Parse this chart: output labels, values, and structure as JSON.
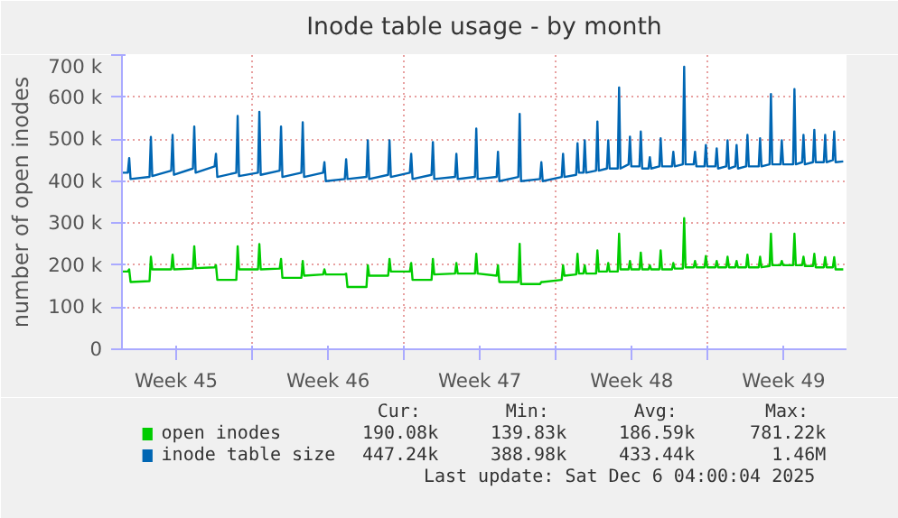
{
  "chart_data": {
    "type": "line",
    "title": "Inode table usage - by month",
    "ylabel": "number of open inodes",
    "x": [
      "2025-11-04T00:00",
      "2025-11-04T06:30",
      "2025-11-04T08:00",
      "2025-11-04T09:30",
      "2025-11-05T06:30",
      "2025-11-05T08:00",
      "2025-11-05T09:30",
      "2025-11-06T06:30",
      "2025-11-06T08:00",
      "2025-11-06T09:30",
      "2025-11-07T06:30",
      "2025-11-07T08:00",
      "2025-11-07T09:30",
      "2025-11-08T06:30",
      "2025-11-08T08:00",
      "2025-11-08T09:30",
      "2025-11-09T06:30",
      "2025-11-09T08:00",
      "2025-11-09T09:30",
      "2025-11-10T06:30",
      "2025-11-10T08:00",
      "2025-11-10T09:30",
      "2025-11-11T06:30",
      "2025-11-11T08:00",
      "2025-11-11T09:30",
      "2025-11-12T06:30",
      "2025-11-12T08:00",
      "2025-11-12T09:30",
      "2025-11-13T06:30",
      "2025-11-13T08:00",
      "2025-11-13T09:30",
      "2025-11-14T06:30",
      "2025-11-14T08:00",
      "2025-11-14T09:30",
      "2025-11-15T06:30",
      "2025-11-15T08:00",
      "2025-11-15T09:30",
      "2025-11-16T06:30",
      "2025-11-16T08:00",
      "2025-11-16T09:30",
      "2025-11-17T06:30",
      "2025-11-17T08:00",
      "2025-11-17T09:30",
      "2025-11-18T06:30",
      "2025-11-18T08:00",
      "2025-11-18T09:30",
      "2025-11-19T08:30",
      "2025-11-19T10:00",
      "2025-11-19T11:30",
      "2025-11-20T06:30",
      "2025-11-20T08:00",
      "2025-11-20T09:30",
      "2025-11-21T06:30",
      "2025-11-21T08:00",
      "2025-11-21T09:30",
      "2025-11-22T06:30",
      "2025-11-22T08:00",
      "2025-11-22T09:30",
      "2025-11-23T06:30",
      "2025-11-23T08:00",
      "2025-11-23T09:30",
      "2025-11-24T06:30",
      "2025-11-24T08:00",
      "2025-11-24T09:30",
      "2025-11-24T22:30",
      "2025-11-25T00:00",
      "2025-11-25T01:30",
      "2025-11-25T06:30",
      "2025-11-25T08:00",
      "2025-11-25T09:30",
      "2025-11-25T20:30",
      "2025-11-25T22:00",
      "2025-11-25T23:30",
      "2025-11-26T08:30",
      "2025-11-26T10:00",
      "2025-11-26T11:30",
      "2025-11-26T20:30",
      "2025-11-26T22:00",
      "2025-11-26T23:30",
      "2025-11-27T08:30",
      "2025-11-27T10:00",
      "2025-11-27T11:30",
      "2025-11-27T20:30",
      "2025-11-27T22:00",
      "2025-11-27T23:30",
      "2025-11-28T06:30",
      "2025-11-28T08:00",
      "2025-11-28T09:30",
      "2025-11-28T18:30",
      "2025-11-28T20:00",
      "2025-11-28T21:30",
      "2025-11-29T08:30",
      "2025-11-29T10:00",
      "2025-11-29T11:30",
      "2025-11-29T20:30",
      "2025-11-29T22:00",
      "2025-11-29T23:30",
      "2025-11-30T08:30",
      "2025-11-30T10:00",
      "2025-11-30T11:30",
      "2025-11-30T20:30",
      "2025-11-30T22:00",
      "2025-11-30T23:30",
      "2025-12-01T08:30",
      "2025-12-01T10:00",
      "2025-12-01T11:30",
      "2025-12-01T20:30",
      "2025-12-01T22:00",
      "2025-12-01T23:30",
      "2025-12-02T06:30",
      "2025-12-02T08:00",
      "2025-12-02T09:30",
      "2025-12-02T18:30",
      "2025-12-02T20:00",
      "2025-12-02T21:30",
      "2025-12-03T08:30",
      "2025-12-03T10:00",
      "2025-12-03T11:30",
      "2025-12-03T20:30",
      "2025-12-03T22:00",
      "2025-12-03T23:30",
      "2025-12-04T08:30",
      "2025-12-04T10:00",
      "2025-12-04T11:30",
      "2025-12-04T22:30",
      "2025-12-05T00:00",
      "2025-12-05T01:30",
      "2025-12-05T08:30",
      "2025-12-05T10:00",
      "2025-12-05T11:30",
      "2025-12-05T20:30",
      "2025-12-05T22:00",
      "2025-12-05T23:30",
      "2025-12-06T08:30",
      "2025-12-06T10:00",
      "2025-12-06T11:30",
      "2025-12-06T18:30",
      "2025-12-06T20:00",
      "2025-12-06T21:30",
      "2025-12-07T06:00"
    ],
    "series": [
      {
        "name": "open inodes",
        "color": "#00cc00",
        "values": [
          185000,
          185000,
          190000,
          160000,
          162000,
          220000,
          190000,
          190000,
          225000,
          190000,
          192000,
          245000,
          193000,
          195000,
          200000,
          165000,
          165000,
          245000,
          190000,
          190000,
          250000,
          190000,
          192000,
          215000,
          170000,
          170000,
          210000,
          175000,
          178000,
          190000,
          178000,
          178000,
          180000,
          148000,
          148000,
          200000,
          175000,
          175000,
          215000,
          185000,
          185000,
          205000,
          165000,
          165000,
          215000,
          178000,
          180000,
          205000,
          180000,
          180000,
          227000,
          180000,
          175000,
          200000,
          160000,
          160000,
          251000,
          155000,
          155000,
          160000,
          160000,
          165000,
          200000,
          175000,
          178000,
          227000,
          180000,
          180000,
          200000,
          180000,
          180000,
          235000,
          185000,
          185000,
          205000,
          185000,
          185000,
          275000,
          190000,
          190000,
          210000,
          190000,
          190000,
          230000,
          190000,
          190000,
          200000,
          190000,
          190000,
          235000,
          190000,
          190000,
          205000,
          192000,
          192000,
          312000,
          195000,
          195000,
          210000,
          195000,
          195000,
          222000,
          195000,
          195000,
          210000,
          195000,
          195000,
          220000,
          195000,
          195000,
          210000,
          195000,
          195000,
          225000,
          195000,
          195000,
          220000,
          195000,
          198000,
          275000,
          200000,
          200000,
          210000,
          200000,
          200000,
          275000,
          200000,
          200000,
          220000,
          198000,
          198000,
          227000,
          195000,
          195000,
          219000,
          195000,
          195000,
          219000,
          190000,
          190000
        ]
      },
      {
        "name": "inode table size",
        "color": "#0066b3",
        "values": [
          420000,
          420000,
          455000,
          405000,
          410000,
          505000,
          412000,
          425000,
          510000,
          415000,
          430000,
          530000,
          420000,
          435000,
          465000,
          410000,
          420000,
          555000,
          412000,
          420000,
          565000,
          415000,
          425000,
          530000,
          410000,
          420000,
          540000,
          410000,
          420000,
          445000,
          400000,
          405000,
          452000,
          405000,
          410000,
          497000,
          405000,
          415000,
          497000,
          410000,
          420000,
          465000,
          405000,
          415000,
          493000,
          405000,
          410000,
          465000,
          405000,
          410000,
          525000,
          405000,
          410000,
          470000,
          400000,
          410000,
          560000,
          400000,
          405000,
          445000,
          400000,
          410000,
          465000,
          410000,
          415000,
          490000,
          420000,
          420000,
          497000,
          420000,
          425000,
          542000,
          425000,
          430000,
          497000,
          430000,
          430000,
          623000,
          430000,
          440000,
          506000,
          435000,
          435000,
          518000,
          430000,
          430000,
          457000,
          430000,
          435000,
          502000,
          435000,
          435000,
          470000,
          435000,
          440000,
          672000,
          440000,
          440000,
          470000,
          435000,
          435000,
          486000,
          435000,
          435000,
          478000,
          430000,
          435000,
          497000,
          430000,
          435000,
          486000,
          430000,
          435000,
          510000,
          435000,
          435000,
          502000,
          435000,
          440000,
          607000,
          440000,
          440000,
          497000,
          440000,
          440000,
          619000,
          440000,
          445000,
          510000,
          440000,
          445000,
          522000,
          445000,
          445000,
          510000,
          445000,
          450000,
          518000,
          445000,
          447000
        ]
      }
    ],
    "xlim": [
      "2025-11-04T00:00",
      "2025-12-07T09:36"
    ],
    "xticks": [
      {
        "value": "2025-11-06T12:00",
        "label": "Week 45"
      },
      {
        "value": "2025-11-10T00:00",
        "label": null
      },
      {
        "value": "2025-11-13T12:00",
        "label": "Week 46"
      },
      {
        "value": "2025-11-17T00:00",
        "label": null
      },
      {
        "value": "2025-11-20T12:00",
        "label": "Week 47"
      },
      {
        "value": "2025-11-24T00:00",
        "label": null
      },
      {
        "value": "2025-11-27T12:00",
        "label": "Week 48"
      },
      {
        "value": "2025-12-01T00:00",
        "label": null
      },
      {
        "value": "2025-12-04T12:00",
        "label": "Week 49"
      }
    ],
    "ylim": [
      0,
      700000
    ],
    "yticks": [
      0,
      {
        "value": 100000,
        "label": "100 k"
      },
      {
        "value": 200000,
        "label": "200 k"
      },
      {
        "value": 300000,
        "label": "300 k"
      },
      {
        "value": 400000,
        "label": "400 k"
      },
      {
        "value": 500000,
        "label": "500 k"
      },
      {
        "value": 600000,
        "label": "600 k"
      },
      {
        "value": 700000,
        "label": "700 k"
      }
    ],
    "grid": true,
    "legend": "bottom",
    "marker": "none",
    "line_style": "solid",
    "annotations": [
      "Cur:",
      "Min:",
      "Avg:",
      "Max:",
      "190.08k",
      "139.83k",
      "186.59k",
      "781.22k",
      "447.24k",
      "388.98k",
      "433.44k",
      "1.46M",
      "Last update: Sat Dec  6 04:00:04 2025"
    ]
  }
}
